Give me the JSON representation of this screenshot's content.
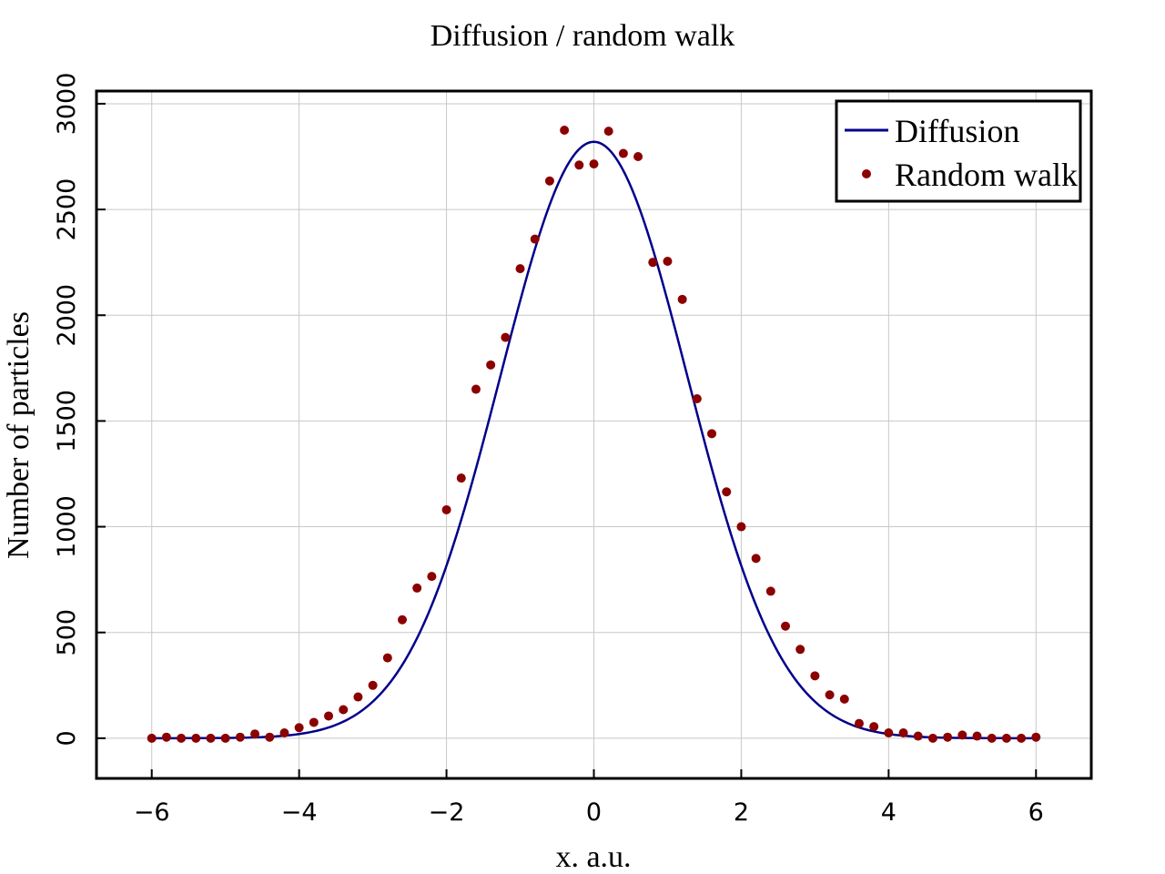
{
  "chart_data": {
    "type": "line",
    "title": "Diffusion / random walk",
    "xlabel": "x. a.u.",
    "ylabel": "Number of particles",
    "xlim": [
      -6.75,
      6.75
    ],
    "ylim": [
      -190,
      3060
    ],
    "xticks": [
      -6,
      -4,
      -2,
      0,
      2,
      4,
      6
    ],
    "xtick_labels": [
      "−6",
      "−4",
      "−2",
      "0",
      "2",
      "4",
      "6"
    ],
    "yticks": [
      0,
      500,
      1000,
      1500,
      2000,
      2500,
      3000
    ],
    "ytick_labels": [
      "0",
      "500",
      "1000",
      "1500",
      "2000",
      "2500",
      "3000"
    ],
    "grid": true,
    "legend_position": "top-right",
    "series": [
      {
        "name": "Diffusion",
        "kind": "line",
        "color": "#00008b",
        "curve": "gaussian",
        "amplitude": 2820,
        "mean": 0,
        "sigma": 1.27,
        "x_range": [
          -6,
          6
        ]
      },
      {
        "name": "Random walk",
        "kind": "scatter",
        "color": "#8b0000",
        "x": [
          -6.0,
          -5.8,
          -5.6,
          -5.4,
          -5.2,
          -5.0,
          -4.8,
          -4.6,
          -4.4,
          -4.2,
          -4.0,
          -3.8,
          -3.6,
          -3.4,
          -3.2,
          -3.0,
          -2.8,
          -2.6,
          -2.4,
          -2.2,
          -2.0,
          -1.8,
          -1.6,
          -1.4,
          -1.2,
          -1.0,
          -0.8,
          -0.6,
          -0.4,
          -0.2,
          0.0,
          0.2,
          0.4,
          0.6,
          0.8,
          1.0,
          1.2,
          1.4,
          1.6,
          1.8,
          2.0,
          2.2,
          2.4,
          2.6,
          2.8,
          3.0,
          3.2,
          3.4,
          3.6,
          3.8,
          4.0,
          4.2,
          4.4,
          4.6,
          4.8,
          5.0,
          5.2,
          5.4,
          5.6,
          5.8,
          6.0
        ],
        "y": [
          0,
          5,
          0,
          0,
          0,
          0,
          5,
          20,
          5,
          25,
          50,
          75,
          105,
          135,
          195,
          250,
          380,
          560,
          710,
          765,
          1080,
          1230,
          1650,
          1765,
          1895,
          2220,
          2360,
          2635,
          2875,
          2710,
          2715,
          2870,
          2765,
          2750,
          2250,
          2255,
          2075,
          1605,
          1440,
          1165,
          1000,
          850,
          695,
          530,
          420,
          295,
          205,
          185,
          70,
          55,
          25,
          25,
          10,
          0,
          5,
          15,
          10,
          0,
          0,
          0,
          5
        ]
      }
    ]
  }
}
